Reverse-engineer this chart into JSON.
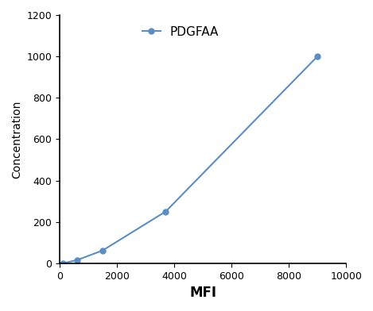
{
  "x": [
    100,
    600,
    1500,
    3700,
    9000
  ],
  "y": [
    0,
    15,
    62,
    250,
    1000
  ],
  "line_color": "#5b8ec4",
  "marker_color": "#5b8ec4",
  "marker_style": "o",
  "marker_size": 5,
  "line_width": 1.5,
  "xlabel": "MFI",
  "ylabel": "Concentration",
  "legend_label": "PDGFAA",
  "xlim": [
    0,
    10000
  ],
  "ylim": [
    0,
    1200
  ],
  "xticks": [
    0,
    2000,
    4000,
    6000,
    8000,
    10000
  ],
  "yticks": [
    0,
    200,
    400,
    600,
    800,
    1000,
    1200
  ],
  "xlabel_fontsize": 12,
  "ylabel_fontsize": 10,
  "tick_fontsize": 9,
  "legend_fontsize": 11,
  "background_color": "#ffffff"
}
